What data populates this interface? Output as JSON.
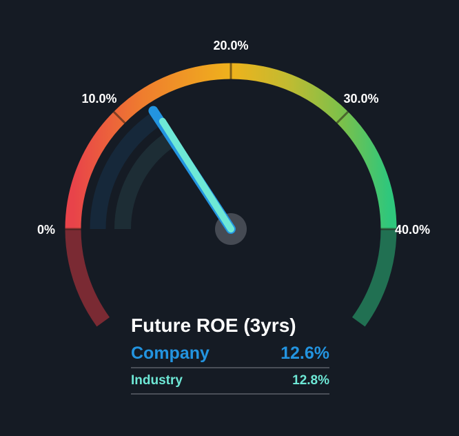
{
  "chart_data": {
    "type": "gauge",
    "title": "Future ROE (3yrs)",
    "min": 0,
    "max": 40,
    "ticks": [
      {
        "value": 0,
        "label": "0%"
      },
      {
        "value": 10,
        "label": "10.0%"
      },
      {
        "value": 20,
        "label": "20.0%"
      },
      {
        "value": 30,
        "label": "30.0%"
      },
      {
        "value": 40,
        "label": "40.0%"
      }
    ],
    "series": [
      {
        "name": "Company",
        "value": 12.6,
        "display": "12.6%",
        "color": "#2394e0"
      },
      {
        "name": "Industry",
        "value": 12.8,
        "display": "12.8%",
        "color": "#6ee8d6"
      }
    ],
    "colors": {
      "background": "#151b24",
      "gauge_gradient": [
        "#e8434a",
        "#ef7d2e",
        "#efb21c",
        "#c2bb31",
        "#7cc04a",
        "#2fc77c"
      ],
      "below_min": "#7a2a33",
      "above_max": "#217052",
      "company_track": "#16283a",
      "industry_track": "#1d2d35",
      "hub": "#454a53"
    }
  },
  "legend": {
    "title": "Future ROE (3yrs)",
    "company_label": "Company",
    "company_value": "12.6%",
    "industry_label": "Industry",
    "industry_value": "12.8%"
  }
}
